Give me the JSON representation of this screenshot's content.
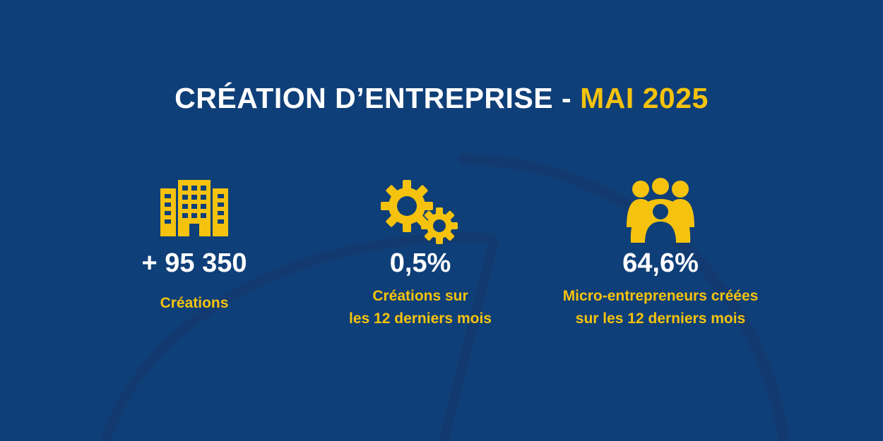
{
  "colors": {
    "background": "#0f3f78",
    "accent": "#f5c30d",
    "text": "#ffffff",
    "decor": "#123a70"
  },
  "header": {
    "title_main": "CRÉATION D’ENTREPRISE",
    "title_separator": " - ",
    "title_highlight": "MAI 2025"
  },
  "stats": [
    {
      "icon": "building-icon",
      "value": "+ 95 350",
      "caption_line1": "Créations",
      "caption_line2": ""
    },
    {
      "icon": "gears-icon",
      "value": "0,5%",
      "caption_line1": "Créations sur",
      "caption_line2": "les 12 derniers mois"
    },
    {
      "icon": "people-group-icon",
      "value": "64,6%",
      "caption_line1": "Micro-entrepreneurs créées",
      "caption_line2": "sur les 12 derniers mois"
    }
  ]
}
